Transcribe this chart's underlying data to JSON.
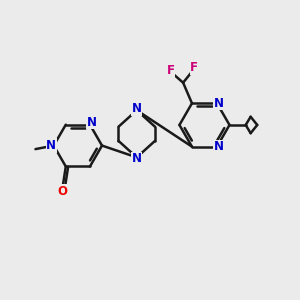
{
  "background_color": "#ebebeb",
  "bond_color": "#1a1a1a",
  "n_color": "#0000cc",
  "o_color": "#ee0000",
  "f_color": "#cc0077",
  "bond_width": 1.8,
  "font_size": 8.5,
  "figsize": [
    3.0,
    3.0
  ],
  "dpi": 100,
  "xlim": [
    0,
    10
  ],
  "ylim": [
    0,
    10
  ]
}
